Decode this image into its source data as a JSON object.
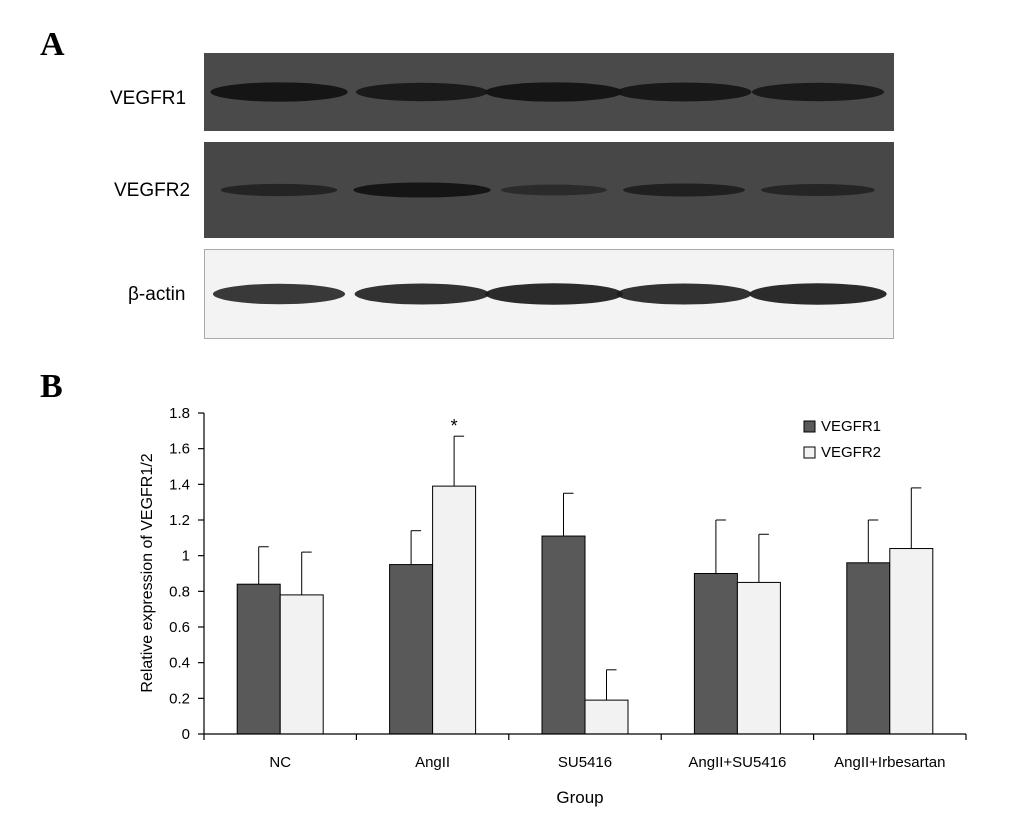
{
  "panel_a": {
    "letter": "A",
    "rows": [
      {
        "label": "VEGFR1",
        "kind": "dark"
      },
      {
        "label": "VEGFR2",
        "kind": "dark"
      },
      {
        "label": "β-actin",
        "kind": "light"
      }
    ],
    "band_intensity": {
      "VEGFR1": [
        0.95,
        0.85,
        0.95,
        0.9,
        0.85
      ],
      "VEGFR2": [
        0.55,
        0.95,
        0.35,
        0.65,
        0.5
      ],
      "β-actin": [
        0.85,
        0.9,
        0.95,
        0.9,
        0.95
      ]
    },
    "colors": {
      "dark_blot_bg": "#4a4a4a",
      "dark_band": "#141414",
      "light_blot_bg": "#f2f2f2",
      "light_band": "#1a1a1a"
    }
  },
  "panel_b": {
    "letter": "B"
  },
  "chart_data": {
    "type": "bar",
    "categories": [
      "NC",
      "AngII",
      "SU5416",
      "AngII+SU5416",
      "AngII+Irbesartan"
    ],
    "series": [
      {
        "name": "VEGFR1",
        "values": [
          0.84,
          0.95,
          1.11,
          0.9,
          0.96
        ],
        "errors": [
          0.21,
          0.19,
          0.24,
          0.3,
          0.24
        ],
        "color": "#595959"
      },
      {
        "name": "VEGFR2",
        "values": [
          0.78,
          1.39,
          0.19,
          0.85,
          1.04
        ],
        "errors": [
          0.24,
          0.28,
          0.17,
          0.27,
          0.34
        ],
        "color": "#f2f2f2"
      }
    ],
    "annotations": [
      {
        "category": "AngII",
        "series": "VEGFR2",
        "text": "*"
      }
    ],
    "xlabel": "Group",
    "ylabel": "Relative expression of VEGFR1/2",
    "ylim": [
      0,
      1.8
    ],
    "yticks": [
      "0",
      "0.2",
      "0.4",
      "0.6",
      "0.8",
      "1",
      "1.2",
      "1.4",
      "1.6",
      "1.8"
    ],
    "grid": false,
    "legend": "top-right"
  }
}
